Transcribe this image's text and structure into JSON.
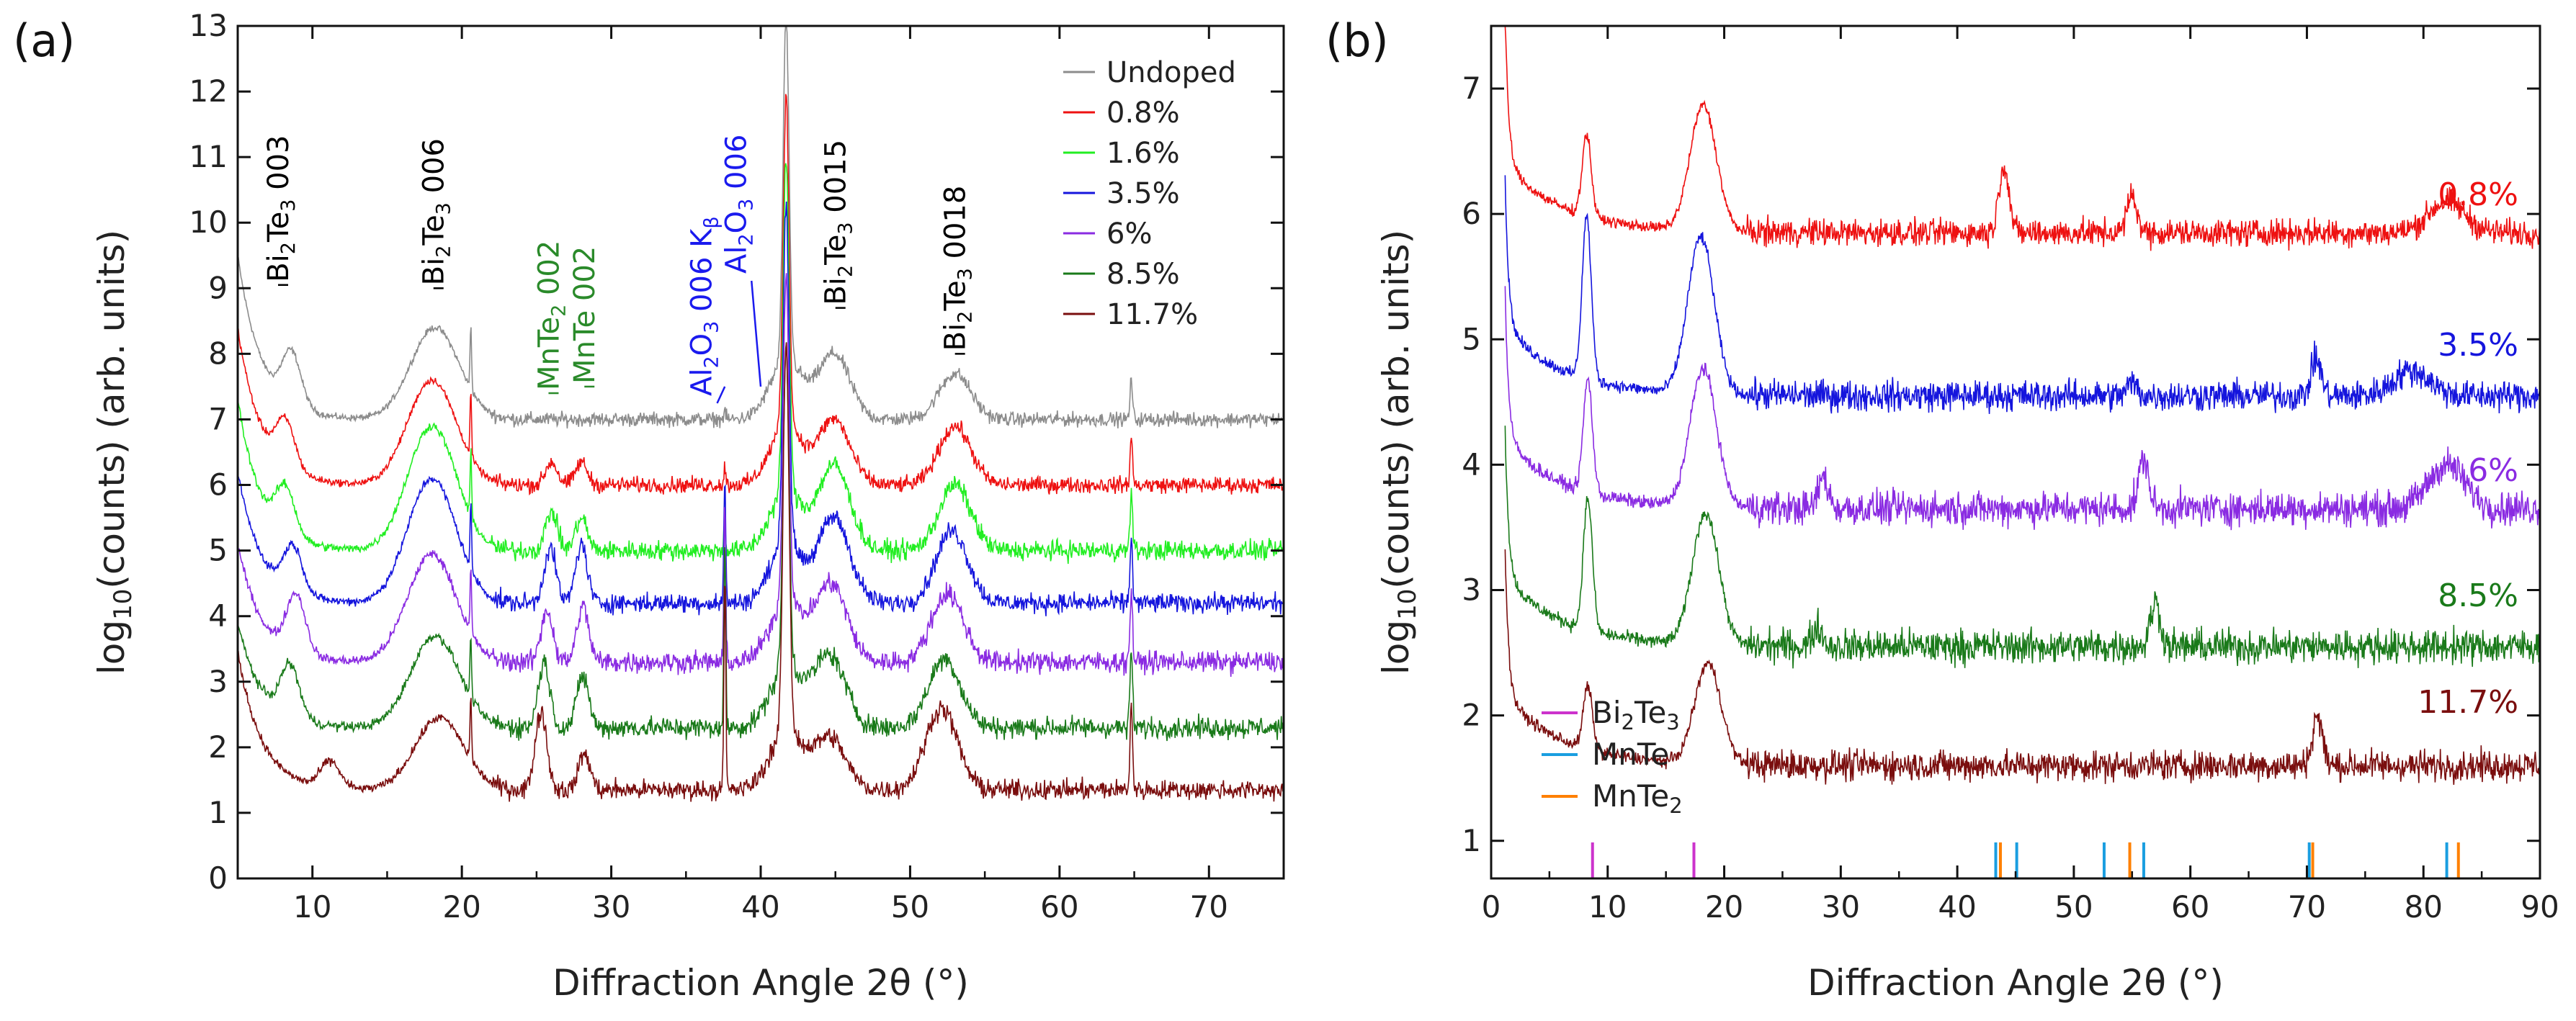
{
  "chart_data": [
    {
      "type": "line",
      "panel_label": "(a)",
      "xlabel": "Diffraction Angle 2θ (°)",
      "ylabel": "log10(counts) (arb. units)",
      "xlim": [
        5,
        75
      ],
      "ylim": [
        0,
        13
      ],
      "xticks": [
        10,
        20,
        30,
        40,
        50,
        60,
        70
      ],
      "yticks": [
        0,
        1,
        2,
        3,
        4,
        5,
        6,
        7,
        8,
        9,
        10,
        11,
        12,
        13
      ],
      "legend": [
        "Undoped",
        "0.8%",
        "1.6%",
        "3.5%",
        "6%",
        "8.5%",
        "11.7%"
      ],
      "series": [
        {
          "name": "Undoped",
          "color": "#8c8c8c",
          "baseline": 7.0,
          "noise": 0.16,
          "bi2te3_peaks": [
            [
              8.6,
              0.8
            ],
            [
              18.2,
              1.4
            ],
            [
              44.9,
              1.0
            ],
            [
              53.0,
              0.7
            ]
          ],
          "mn_peaks": [],
          "substrate_peaks": [
            [
              41.7,
              5.2
            ],
            [
              64.8,
              0.6
            ]
          ],
          "low_angle_rise": 2.5
        },
        {
          "name": "0.8%",
          "color": "#ee1111",
          "baseline": 6.0,
          "noise": 0.18,
          "bi2te3_peaks": [
            [
              8.2,
              0.7
            ],
            [
              18.0,
              1.6
            ],
            [
              44.9,
              1.0
            ],
            [
              53.0,
              0.9
            ]
          ],
          "mn_peaks": [
            [
              26.0,
              0.35
            ],
            [
              28.0,
              0.35
            ]
          ],
          "substrate_peaks": [
            [
              41.7,
              5.0
            ],
            [
              64.8,
              0.7
            ]
          ],
          "low_angle_rise": 2.4
        },
        {
          "name": "1.6%",
          "color": "#22ee22",
          "baseline": 5.0,
          "noise": 0.22,
          "bi2te3_peaks": [
            [
              8.2,
              0.7
            ],
            [
              18.0,
              1.9
            ],
            [
              44.9,
              1.3
            ],
            [
              53.0,
              1.0
            ]
          ],
          "mn_peaks": [
            [
              26.0,
              0.6
            ],
            [
              28.0,
              0.5
            ]
          ],
          "substrate_peaks": [
            [
              41.7,
              5.1
            ],
            [
              64.8,
              0.9
            ]
          ],
          "low_angle_rise": 2.3
        },
        {
          "name": "3.5%",
          "color": "#1515dd",
          "baseline": 4.2,
          "noise": 0.22,
          "bi2te3_peaks": [
            [
              8.7,
              0.7
            ],
            [
              18.0,
              1.9
            ],
            [
              44.9,
              1.3
            ],
            [
              52.8,
              1.1
            ]
          ],
          "mn_peaks": [
            [
              25.9,
              0.85
            ],
            [
              28.0,
              0.9
            ]
          ],
          "substrate_peaks": [
            [
              41.7,
              5.2
            ],
            [
              64.8,
              1.0
            ]
          ],
          "low_angle_rise": 2.0
        },
        {
          "name": "6%",
          "color": "#8a2be2",
          "baseline": 3.3,
          "noise": 0.24,
          "bi2te3_peaks": [
            [
              8.9,
              0.9
            ],
            [
              18.0,
              1.65
            ],
            [
              44.7,
              1.2
            ],
            [
              52.5,
              1.05
            ]
          ],
          "mn_peaks": [
            [
              25.7,
              0.8
            ],
            [
              28.1,
              0.85
            ]
          ],
          "substrate_peaks": [
            [
              41.7,
              5.0
            ],
            [
              64.8,
              1.1
            ]
          ],
          "low_angle_rise": 1.8
        },
        {
          "name": "8.5%",
          "color": "#1a7a1a",
          "baseline": 2.3,
          "noise": 0.24,
          "bi2te3_peaks": [
            [
              8.5,
              0.8
            ],
            [
              18.2,
              1.4
            ],
            [
              44.6,
              1.1
            ],
            [
              52.3,
              1.05
            ]
          ],
          "mn_peaks": [
            [
              25.5,
              1.0
            ],
            [
              28.1,
              0.8
            ]
          ],
          "substrate_peaks": [
            [
              41.7,
              4.9
            ],
            [
              64.8,
              1.2
            ]
          ],
          "low_angle_rise": 1.6
        },
        {
          "name": "11.7%",
          "color": "#7a0e0e",
          "baseline": 1.35,
          "noise": 0.22,
          "bi2te3_peaks": [
            [
              11.2,
              0.4
            ],
            [
              18.5,
              1.1
            ],
            [
              44.6,
              0.8
            ],
            [
              52.1,
              1.25
            ]
          ],
          "mn_peaks": [
            [
              25.3,
              1.2
            ],
            [
              28.2,
              0.55
            ]
          ],
          "substrate_peaks": [
            [
              41.7,
              5.9
            ],
            [
              64.8,
              1.3
            ]
          ],
          "low_angle_rise": 2.1
        }
      ],
      "annotations": [
        {
          "label": "Bi₂Te₃ 003",
          "color": "#000000",
          "x": 7.7,
          "y": 9.05
        },
        {
          "label": "Bi₂Te₃ 006",
          "color": "#000000",
          "x": 18.1,
          "y": 9.0
        },
        {
          "label": "MnTe₂ 002",
          "color": "#2a8a2a",
          "x": 25.8,
          "y": 7.4
        },
        {
          "label": "MnTe 002",
          "color": "#2a8a2a",
          "x": 28.2,
          "y": 7.5
        },
        {
          "label": "Al₂O₃ 006 Kβ",
          "color": "#1a1aee",
          "x": 37.6,
          "y": 8.0
        },
        {
          "label": "Al₂O₃ 006",
          "color": "#1a1aee",
          "x": 40.0,
          "y": 8.0
        },
        {
          "label": "Bi₂Te₃ 0015",
          "color": "#000000",
          "x": 45.0,
          "y": 8.7
        },
        {
          "label": "Bi₂Te₃ 0018",
          "color": "#000000",
          "x": 53.0,
          "y": 8.0
        }
      ]
    },
    {
      "type": "line",
      "panel_label": "(b)",
      "xlabel": "Diffraction Angle 2θ (°)",
      "ylabel": "log10(counts) (arb. units)",
      "xlim": [
        0,
        90
      ],
      "ylim": [
        0.7,
        7.5
      ],
      "xticks": [
        0,
        10,
        20,
        30,
        40,
        50,
        60,
        70,
        80,
        90
      ],
      "yticks": [
        1,
        2,
        3,
        4,
        5,
        6,
        7
      ],
      "series": [
        {
          "name": "0.8%",
          "color": "#ee1111",
          "baseline": 5.85,
          "noise": 0.16,
          "peaks": [
            [
              8.2,
              0.65
            ],
            [
              18.2,
              1.0
            ],
            [
              44.0,
              0.55
            ],
            [
              55.0,
              0.3
            ],
            [
              82.0,
              0.25
            ]
          ],
          "label_y": 6.15
        },
        {
          "name": "3.5%",
          "color": "#1515dd",
          "baseline": 4.55,
          "noise": 0.18,
          "peaks": [
            [
              8.2,
              1.3
            ],
            [
              18.0,
              1.25
            ],
            [
              70.8,
              0.3
            ],
            [
              55.0,
              0.1
            ],
            [
              79.0,
              0.2
            ]
          ],
          "label_y": 4.95
        },
        {
          "name": "6%",
          "color": "#8a2be2",
          "baseline": 3.65,
          "noise": 0.2,
          "peaks": [
            [
              8.3,
              0.9
            ],
            [
              18.2,
              1.1
            ],
            [
              28.5,
              0.25
            ],
            [
              56.0,
              0.4
            ],
            [
              82.0,
              0.35
            ]
          ],
          "label_y": 3.95
        },
        {
          "name": "8.5%",
          "color": "#1a7a1a",
          "baseline": 2.55,
          "noise": 0.2,
          "peaks": [
            [
              8.3,
              1.05
            ],
            [
              18.4,
              1.05
            ],
            [
              28.0,
              0.15
            ],
            [
              57.0,
              0.35
            ]
          ],
          "label_y": 2.95
        },
        {
          "name": "11.7%",
          "color": "#7a0e0e",
          "baseline": 1.6,
          "noise": 0.18,
          "peaks": [
            [
              8.3,
              0.5
            ],
            [
              18.6,
              0.8
            ],
            [
              70.9,
              0.4
            ]
          ],
          "label_y": 2.1
        }
      ],
      "reference_legend": [
        {
          "label": "Bi₂Te₃",
          "color": "#cc33cc"
        },
        {
          "label": "MnTe",
          "color": "#1a9ee0"
        },
        {
          "label": "MnTe₂",
          "color": "#ff8000"
        }
      ],
      "reference_lines": [
        {
          "phase": "Bi₂Te₃",
          "x": [
            8.7,
            17.4
          ]
        },
        {
          "phase": "MnTe",
          "x": [
            43.3,
            45.1,
            52.6,
            56.0,
            70.2,
            82.0
          ]
        },
        {
          "phase": "MnTe₂",
          "x": [
            43.7,
            54.8,
            70.5,
            83.0
          ]
        }
      ]
    }
  ]
}
